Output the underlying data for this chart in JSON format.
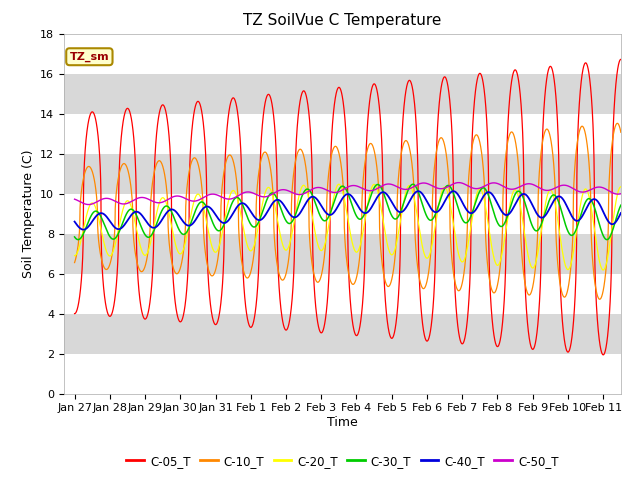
{
  "title": "TZ SoilVue C Temperature",
  "xlabel": "Time",
  "ylabel": "Soil Temperature (C)",
  "ylim": [
    0,
    18
  ],
  "legend_labels": [
    "C-05_T",
    "C-10_T",
    "C-20_T",
    "C-30_T",
    "C-40_T",
    "C-50_T"
  ],
  "line_colors": [
    "#ff0000",
    "#ff8800",
    "#ffff00",
    "#00cc00",
    "#0000dd",
    "#cc00cc"
  ],
  "station_label": "TZ_sm",
  "background_color": "#ffffff",
  "band_light": "#f0f0f0",
  "band_dark": "#d8d8d8",
  "title_fontsize": 11,
  "axis_label_fontsize": 9,
  "tick_fontsize": 8
}
